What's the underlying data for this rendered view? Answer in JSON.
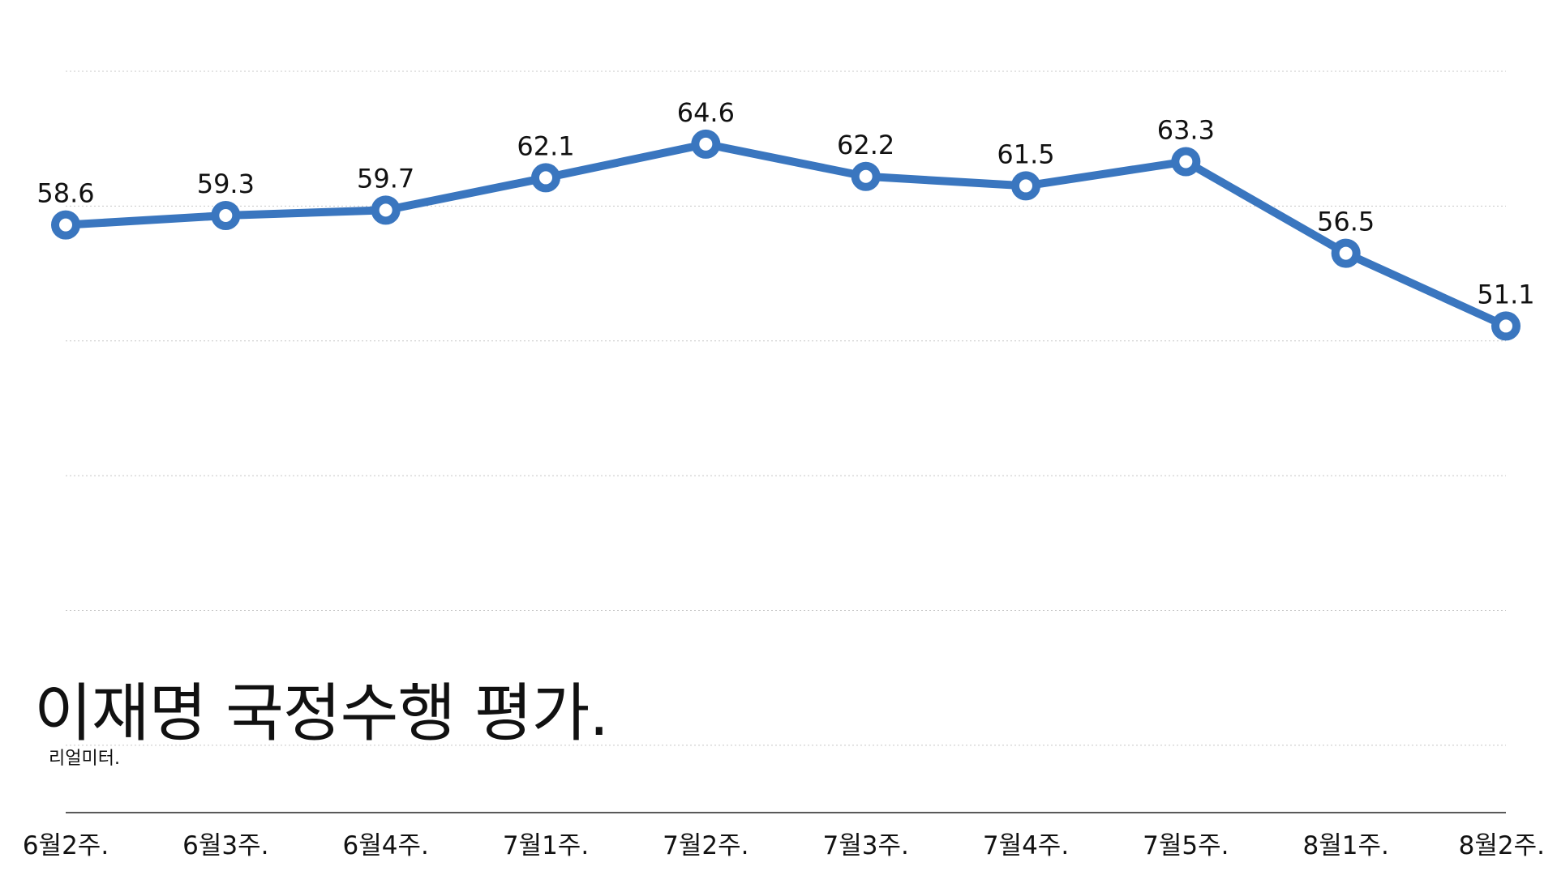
{
  "chart_data": {
    "type": "line",
    "title": "이재명 국정수행 평가.",
    "subtitle": "리얼미터.",
    "categories": [
      "6월2주.",
      "6월3주.",
      "6월4주.",
      "7월1주.",
      "7월2주.",
      "7월3주.",
      "7월4주.",
      "7월5주.",
      "8월1주.",
      "8월2주."
    ],
    "series": [
      {
        "values": [
          58.6,
          59.3,
          59.7,
          62.1,
          64.6,
          62.2,
          61.5,
          63.3,
          56.5,
          51.1
        ]
      }
    ],
    "ylim": [
      15,
      70
    ],
    "grid": true,
    "legend": "none",
    "colors": {
      "line": "#3a76bf",
      "marker_fill": "#ffffff"
    }
  }
}
